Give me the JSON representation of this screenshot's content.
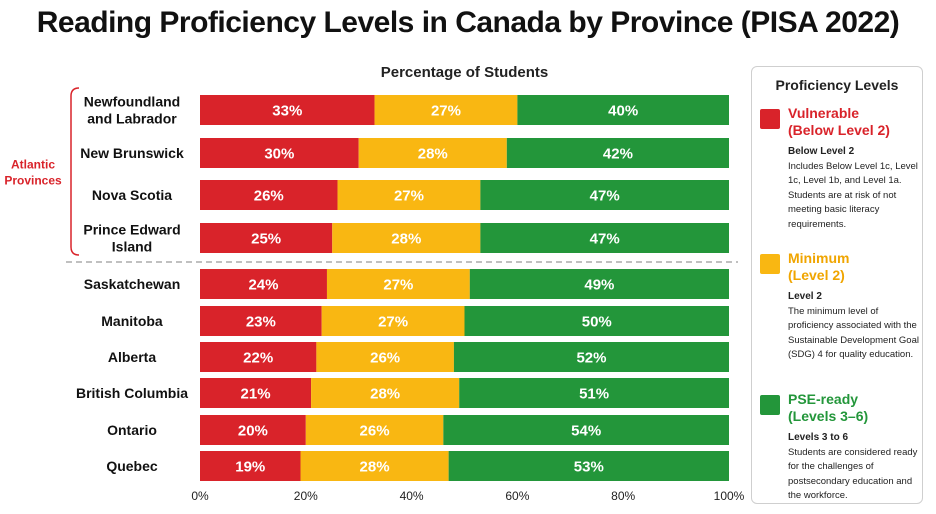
{
  "title": "Reading Proficiency Levels in Canada by Province (PISA 2022)",
  "colors": {
    "vulnerable": "#d9232a",
    "minimum": "#f9b712",
    "pse_ready": "#23963a",
    "group_bracket": "#d9232a"
  },
  "chart_data": {
    "type": "bar",
    "orientation": "horizontal",
    "stacked": true,
    "xlabel": "Percentage of Students",
    "xlim": [
      0,
      100
    ],
    "x_ticks": [
      "0%",
      "20%",
      "40%",
      "60%",
      "80%",
      "100%"
    ],
    "categories": [
      "Newfoundland and Labrador",
      "New Brunswick",
      "Nova Scotia",
      "Prince Edward Island",
      "Saskatchewan",
      "Manitoba",
      "Alberta",
      "British Columbia",
      "Ontario",
      "Quebec"
    ],
    "series": [
      {
        "name": "Vulnerable (Below Level 2)",
        "values": [
          33,
          30,
          26,
          25,
          24,
          23,
          22,
          21,
          20,
          19
        ]
      },
      {
        "name": "Minimum (Level 2)",
        "values": [
          27,
          28,
          27,
          28,
          27,
          27,
          26,
          28,
          26,
          28
        ]
      },
      {
        "name": "PSE-ready (Levels 3–6)",
        "values": [
          40,
          42,
          47,
          47,
          49,
          50,
          52,
          51,
          54,
          53
        ]
      }
    ],
    "groups": [
      {
        "label": "Atlantic Provinces",
        "categories": [
          0,
          1,
          2,
          3
        ]
      }
    ],
    "grid": false,
    "legend_position": "right"
  },
  "legend": {
    "title": "Proficiency Levels",
    "items": [
      {
        "label_line1": "Vulnerable",
        "label_line2": "(Below Level 2)",
        "desc_title": "Below Level 2",
        "desc": "Includes Below Level 1c, Level 1c, Level 1b, and Level 1a. Students are at risk of not meeting basic literacy requirements."
      },
      {
        "label_line1": "Minimum",
        "label_line2": "(Level 2)",
        "desc_title": "Level 2",
        "desc": "The minimum level of proficiency associated with the Sustainable Development Goal (SDG) 4 for quality education."
      },
      {
        "label_line1": "PSE-ready",
        "label_line2": "(Levels 3–6)",
        "desc_title": "Levels 3 to 6",
        "desc": "Students are considered ready for the challenges of postsecondary education and the workforce."
      }
    ]
  }
}
